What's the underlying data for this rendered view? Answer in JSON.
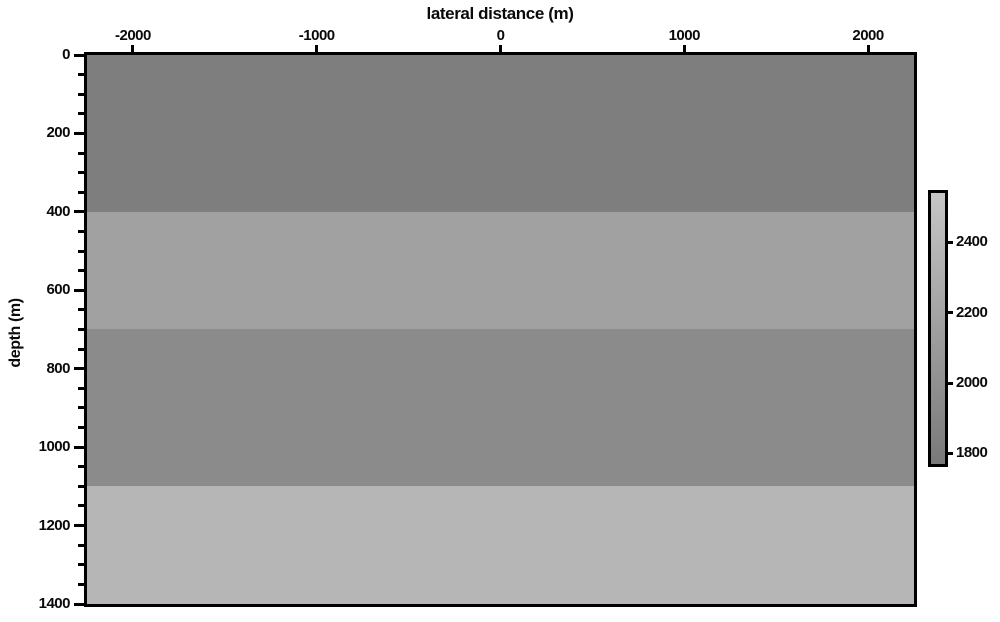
{
  "chart_data": {
    "type": "heatmap",
    "title": "",
    "xlabel": "lateral distance (m)",
    "ylabel": "depth (m)",
    "xlim": [
      -2250,
      2250
    ],
    "ylim": [
      0,
      1400
    ],
    "y_axis_inverted": true,
    "xticks": [
      -2000,
      -1000,
      0,
      1000,
      2000
    ],
    "yticks": [
      0,
      200,
      400,
      600,
      800,
      1000,
      1200,
      1400
    ],
    "y_minor_step": 50,
    "grid": false,
    "description": "Horizontally layered gray-scale velocity model; velocity values estimated from the colorbar",
    "layers": [
      {
        "depth_top": 0,
        "depth_bottom": 400,
        "color": "#7e7e7e",
        "velocity_approx": 1800
      },
      {
        "depth_top": 400,
        "depth_bottom": 700,
        "color": "#a1a1a1",
        "velocity_approx": 2200
      },
      {
        "depth_top": 700,
        "depth_bottom": 1100,
        "color": "#8b8b8b",
        "velocity_approx": 2000
      },
      {
        "depth_top": 1100,
        "depth_bottom": 1400,
        "color": "#b6b6b6",
        "velocity_approx": 2400
      }
    ],
    "colorbar": {
      "range": [
        1770,
        2540
      ],
      "ticks": [
        1800,
        2000,
        2200,
        2400
      ],
      "top_color": "#c6c6c6",
      "bottom_color": "#797979",
      "position": "right"
    }
  }
}
